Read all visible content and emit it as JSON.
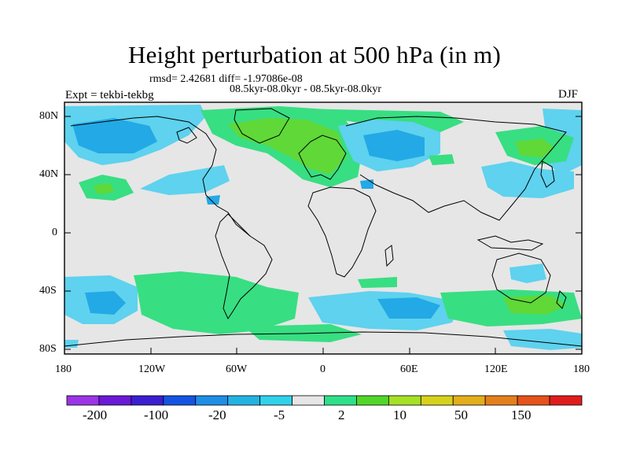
{
  "title": "Height perturbation at 500 hPa (in m)",
  "stats": "rmsd= 2.42681 diff= -1.97086e-08",
  "periods": "08.5kyr-08.0kyr - 08.5kyr-08.0kyr",
  "experiment": "Expt = tekbi-tekbg",
  "season": "DJF",
  "lat_ticks": [
    "80N",
    "40N",
    "0",
    "40S",
    "80S"
  ],
  "lon_ticks": [
    "180",
    "120W",
    "60W",
    "0",
    "60E",
    "120E",
    "180"
  ],
  "colorbar": {
    "colors": [
      "#9b35e6",
      "#6b19d6",
      "#3a1fd0",
      "#1554e2",
      "#1e8ee6",
      "#23b3e3",
      "#2fd2ea",
      "#e6e6e6",
      "#2fe08a",
      "#52d62a",
      "#a6e025",
      "#d6d21c",
      "#e3ae1c",
      "#e3801c",
      "#e5521b",
      "#e01d1d"
    ],
    "labels": [
      "-200",
      "-100",
      "-20",
      "-5",
      "2",
      "10",
      "50",
      "150"
    ]
  },
  "colors": {
    "background": "#e6e6e6",
    "light_blue": "#5ed2ee",
    "mid_blue": "#23a9e6",
    "green": "#38de82",
    "lime": "#5fd838"
  }
}
